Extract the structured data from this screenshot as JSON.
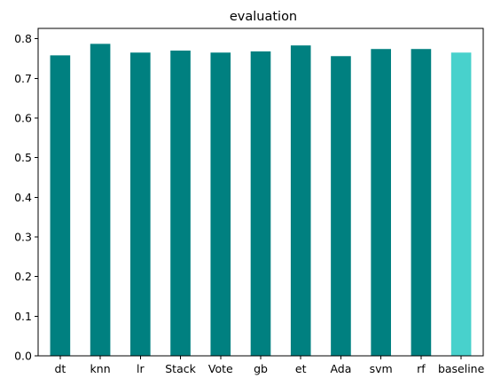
{
  "chart_data": {
    "type": "bar",
    "title": "evaluation",
    "xlabel": "",
    "ylabel": "",
    "categories": [
      "dt",
      "knn",
      "lr",
      "Stack",
      "Vote",
      "gb",
      "et",
      "Ada",
      "svm",
      "rf",
      "baseline"
    ],
    "values": [
      0.758,
      0.787,
      0.765,
      0.77,
      0.765,
      0.768,
      0.783,
      0.756,
      0.774,
      0.774,
      0.765
    ],
    "bar_colors": [
      "#008080",
      "#008080",
      "#008080",
      "#008080",
      "#008080",
      "#008080",
      "#008080",
      "#008080",
      "#008080",
      "#008080",
      "#48d1cc"
    ],
    "ylim": [
      0,
      0.826
    ],
    "yticks": [
      0.0,
      0.1,
      0.2,
      0.3,
      0.4,
      0.5,
      0.6,
      0.7,
      0.8
    ],
    "ytick_labels": [
      "0.0",
      "0.1",
      "0.2",
      "0.3",
      "0.4",
      "0.5",
      "0.6",
      "0.7",
      "0.8"
    ],
    "grid": false,
    "legend": "none"
  }
}
